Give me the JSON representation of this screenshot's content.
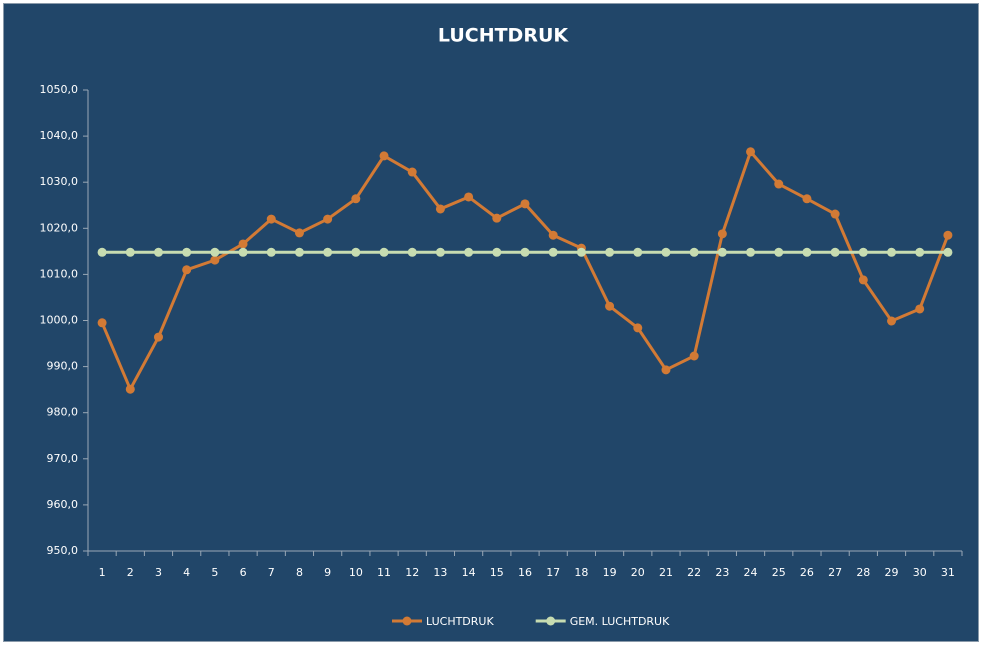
{
  "chart_data": {
    "type": "line",
    "title": "LUCHTDRUK",
    "categories": [
      1,
      2,
      3,
      4,
      5,
      6,
      7,
      8,
      9,
      10,
      11,
      12,
      13,
      14,
      15,
      16,
      17,
      18,
      19,
      20,
      21,
      22,
      23,
      24,
      25,
      26,
      27,
      28,
      29,
      30,
      31
    ],
    "series": [
      {
        "name": "LUCHTDRUK",
        "color": "#d27a35",
        "values": [
          999.5,
          985.1,
          996.4,
          1011.0,
          1013.1,
          1016.6,
          1022.0,
          1019.0,
          1022.0,
          1026.4,
          1035.7,
          1032.2,
          1024.2,
          1026.8,
          1022.2,
          1025.3,
          1018.5,
          1015.7,
          1003.1,
          998.4,
          989.3,
          992.3,
          1018.8,
          1036.6,
          1029.6,
          1026.4,
          1023.1,
          1008.8,
          999.9,
          1002.5,
          1018.5
        ]
      },
      {
        "name": "GEM. LUCHTDRUK",
        "color": "#c7dcb1",
        "values": [
          1014.8,
          1014.8,
          1014.8,
          1014.8,
          1014.8,
          1014.8,
          1014.8,
          1014.8,
          1014.8,
          1014.8,
          1014.8,
          1014.8,
          1014.8,
          1014.8,
          1014.8,
          1014.8,
          1014.8,
          1014.8,
          1014.8,
          1014.8,
          1014.8,
          1014.8,
          1014.8,
          1014.8,
          1014.8,
          1014.8,
          1014.8,
          1014.8,
          1014.8,
          1014.8,
          1014.8
        ]
      }
    ],
    "ylim": [
      950,
      1050
    ],
    "yticks": [
      {
        "value": 950,
        "label": "950,0"
      },
      {
        "value": 960,
        "label": "960,0"
      },
      {
        "value": 970,
        "label": "970,0"
      },
      {
        "value": 980,
        "label": "980,0"
      },
      {
        "value": 990,
        "label": "990,0"
      },
      {
        "value": 1000,
        "label": "1000,0"
      },
      {
        "value": 1010,
        "label": "1010,0"
      },
      {
        "value": 1020,
        "label": "1020,0"
      },
      {
        "value": 1030,
        "label": "1030,0"
      },
      {
        "value": 1040,
        "label": "1040,0"
      },
      {
        "value": 1050,
        "label": "1050,0"
      }
    ],
    "grid": false,
    "legend": "bottom"
  }
}
